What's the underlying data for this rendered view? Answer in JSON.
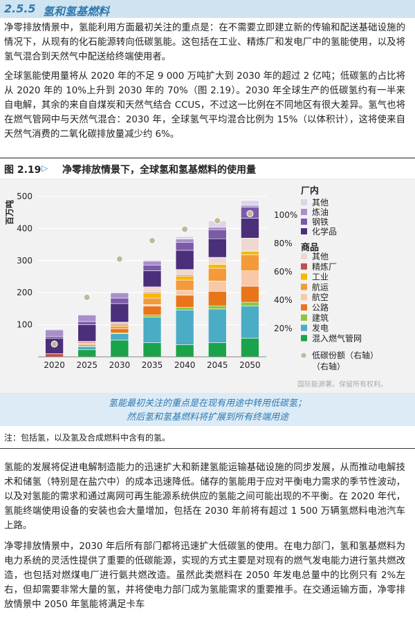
{
  "section": {
    "number": "2.5.5",
    "title": "氢和氢基燃料"
  },
  "paragraphs": {
    "p1": "净零排放情景中，氢能利用方面最初关注的重点是：在不需要立即建立新的传输和配送基础设施的情况下，从现有的化石能源转向低碳氢能。这包括在工业、精炼厂和发电厂中的氢能使用，以及将氢气混合到天然气中配送给终端使用者。",
    "p2": "全球氢能使用量将从 2020 年的不足 9 000 万吨扩大到 2030 年的超过 2 亿吨；低碳氢的占比将从 2020 年的 10%上升到 2030 年的 70%（图 2.19）。2030 年全球生产的低碳氢约有一半来自电解，其余的来自自煤炭和天然气结合 CCUS，不过这一比例在不同地区有很大差异。氢气也将在燃气管网中与天然气混合：2030 年，全球氢气平均混合比例为 15%（以体积计），这将使来自天然气消费的二氧化碳排放量减少约 6%。",
    "p3": "氢能的发展将促进电解制造能力的迅速扩大和新建氢能运输基础设施的同步发展，从而推动电解技术和储氢（特别是在盐穴中）的成本迅速降低。储存的氢能用于应对平衡电力需求的季节性波动，以及对氢能的需求和通过离网可再生能源系统供应的氢能之间可能出现的不平衡。在 2020 年代，氢能终端使用设备的安装也会大量增加，包括在 2030 年前将有超过 1 500 万辆氢燃料电池汽车上路。",
    "p4": "净零排放情景中，2030 年后所有部门都将迅速扩大低碳氢的使用。在电力部门，氢和氢基燃料为电力系统的灵活性提供了重要的低碳能源，实现的方式主要是对现有的燃气发电能力进行氢共燃改造，也包括对燃煤电厂进行氨共燃改造。虽然此类燃料在 2050 年发电总量中的比例只有 2%左右，但却需要非常大量的氢，并将使电力部门成为氢能需求的重要推手。在交通运输方面，净零排放情景中 2050 年氢能将满足卡车"
  },
  "figure": {
    "label": "图 2.19",
    "arrow": "▷",
    "title": "净零排放情景下，全球氢和氢基燃料的使用量",
    "copyright": "国际能源署。保留所有权利。",
    "caption_line1": "氢能最初关注的重点是在现有用途中转用低碳氢；",
    "caption_line2": "然后氢和氢基燃料将扩展到所有终端用途",
    "note": "注：包括氢，以及氢及合成燃料中含有的氢。"
  },
  "colors": {
    "other_factory": "#ddd4ea",
    "refining_factory": "#a88fc9",
    "steel": "#7b5aa8",
    "chemicals": "#4b2f7a",
    "other_goods": "#efd8d0",
    "refinery": "#c0504d",
    "industry": "#f5b800",
    "shipping": "#f39a3a",
    "aviation": "#f8c9a8",
    "road": "#e8751a",
    "buildings": "#8cc63f",
    "power": "#4bacc6",
    "gas_grid": "#1aa34a",
    "lowcarbon_marker": "#c2b99a"
  },
  "chart_data": {
    "type": "bar",
    "stacked": true,
    "categories": [
      "2020",
      "2025",
      "2030",
      "2035",
      "2040",
      "2045",
      "2050"
    ],
    "ylabel": "百万吨",
    "ylim": [
      0,
      530
    ],
    "yticks": [
      100,
      200,
      300,
      400,
      500
    ],
    "y2ticks": [
      "20%",
      "40%",
      "60%",
      "80%",
      "100%"
    ],
    "y2lim": [
      0,
      120
    ],
    "legend_group1_title": "厂内",
    "legend_group2_title": "商品",
    "series": [
      {
        "name": "混入燃气管网",
        "color_key": "gas_grid",
        "values": [
          0,
          22,
          52,
          44,
          38,
          44,
          58
        ]
      },
      {
        "name": "发电",
        "color_key": "power",
        "values": [
          0,
          10,
          20,
          80,
          108,
          105,
          100
        ]
      },
      {
        "name": "建筑",
        "color_key": "buildings",
        "values": [
          0,
          2,
          3,
          6,
          8,
          10,
          12
        ]
      },
      {
        "name": "公路",
        "color_key": "road",
        "values": [
          0,
          4,
          12,
          28,
          38,
          45,
          50
        ]
      },
      {
        "name": "航空",
        "color_key": "aviation",
        "values": [
          0,
          0,
          0,
          5,
          15,
          32,
          48
        ]
      },
      {
        "name": "航运",
        "color_key": "shipping",
        "values": [
          0,
          3,
          8,
          20,
          32,
          40,
          50
        ]
      },
      {
        "name": "工业",
        "color_key": "industry",
        "values": [
          0,
          2,
          5,
          14,
          12,
          12,
          10
        ]
      },
      {
        "name": "精炼厂",
        "color_key": "refinery",
        "values": [
          10,
          3,
          3,
          3,
          3,
          2,
          2
        ]
      },
      {
        "name": "其他",
        "color_key": "other_goods",
        "values": [
          0,
          2,
          5,
          18,
          18,
          20,
          40
        ]
      },
      {
        "name": "化学品",
        "color_key": "chemicals",
        "values": [
          48,
          52,
          58,
          50,
          60,
          58,
          62
        ]
      },
      {
        "name": "钢铁",
        "color_key": "steel",
        "values": [
          6,
          10,
          17,
          18,
          25,
          28,
          34
        ]
      },
      {
        "name": "炼油",
        "color_key": "refining_factory",
        "values": [
          20,
          20,
          16,
          12,
          10,
          8,
          6
        ]
      },
      {
        "name": "其他",
        "color_key": "other_factory",
        "values": [
          3,
          3,
          3,
          4,
          8,
          20,
          15
        ]
      }
    ],
    "low_carbon_share": {
      "name": "低碳份额（右轴）",
      "axis": "right",
      "values": [
        9,
        42,
        69,
        82,
        90,
        96,
        101
      ]
    },
    "legend": {
      "factory": [
        "其他",
        "炼油",
        "钢铁",
        "化学品"
      ],
      "goods": [
        "其他",
        "精炼厂",
        "工业",
        "航运",
        "航空",
        "公路",
        "建筑",
        "发电",
        "混入燃气管网"
      ],
      "marker_line1": "低碳份额（右轴）",
      "marker_line2": "（右轴）"
    }
  }
}
